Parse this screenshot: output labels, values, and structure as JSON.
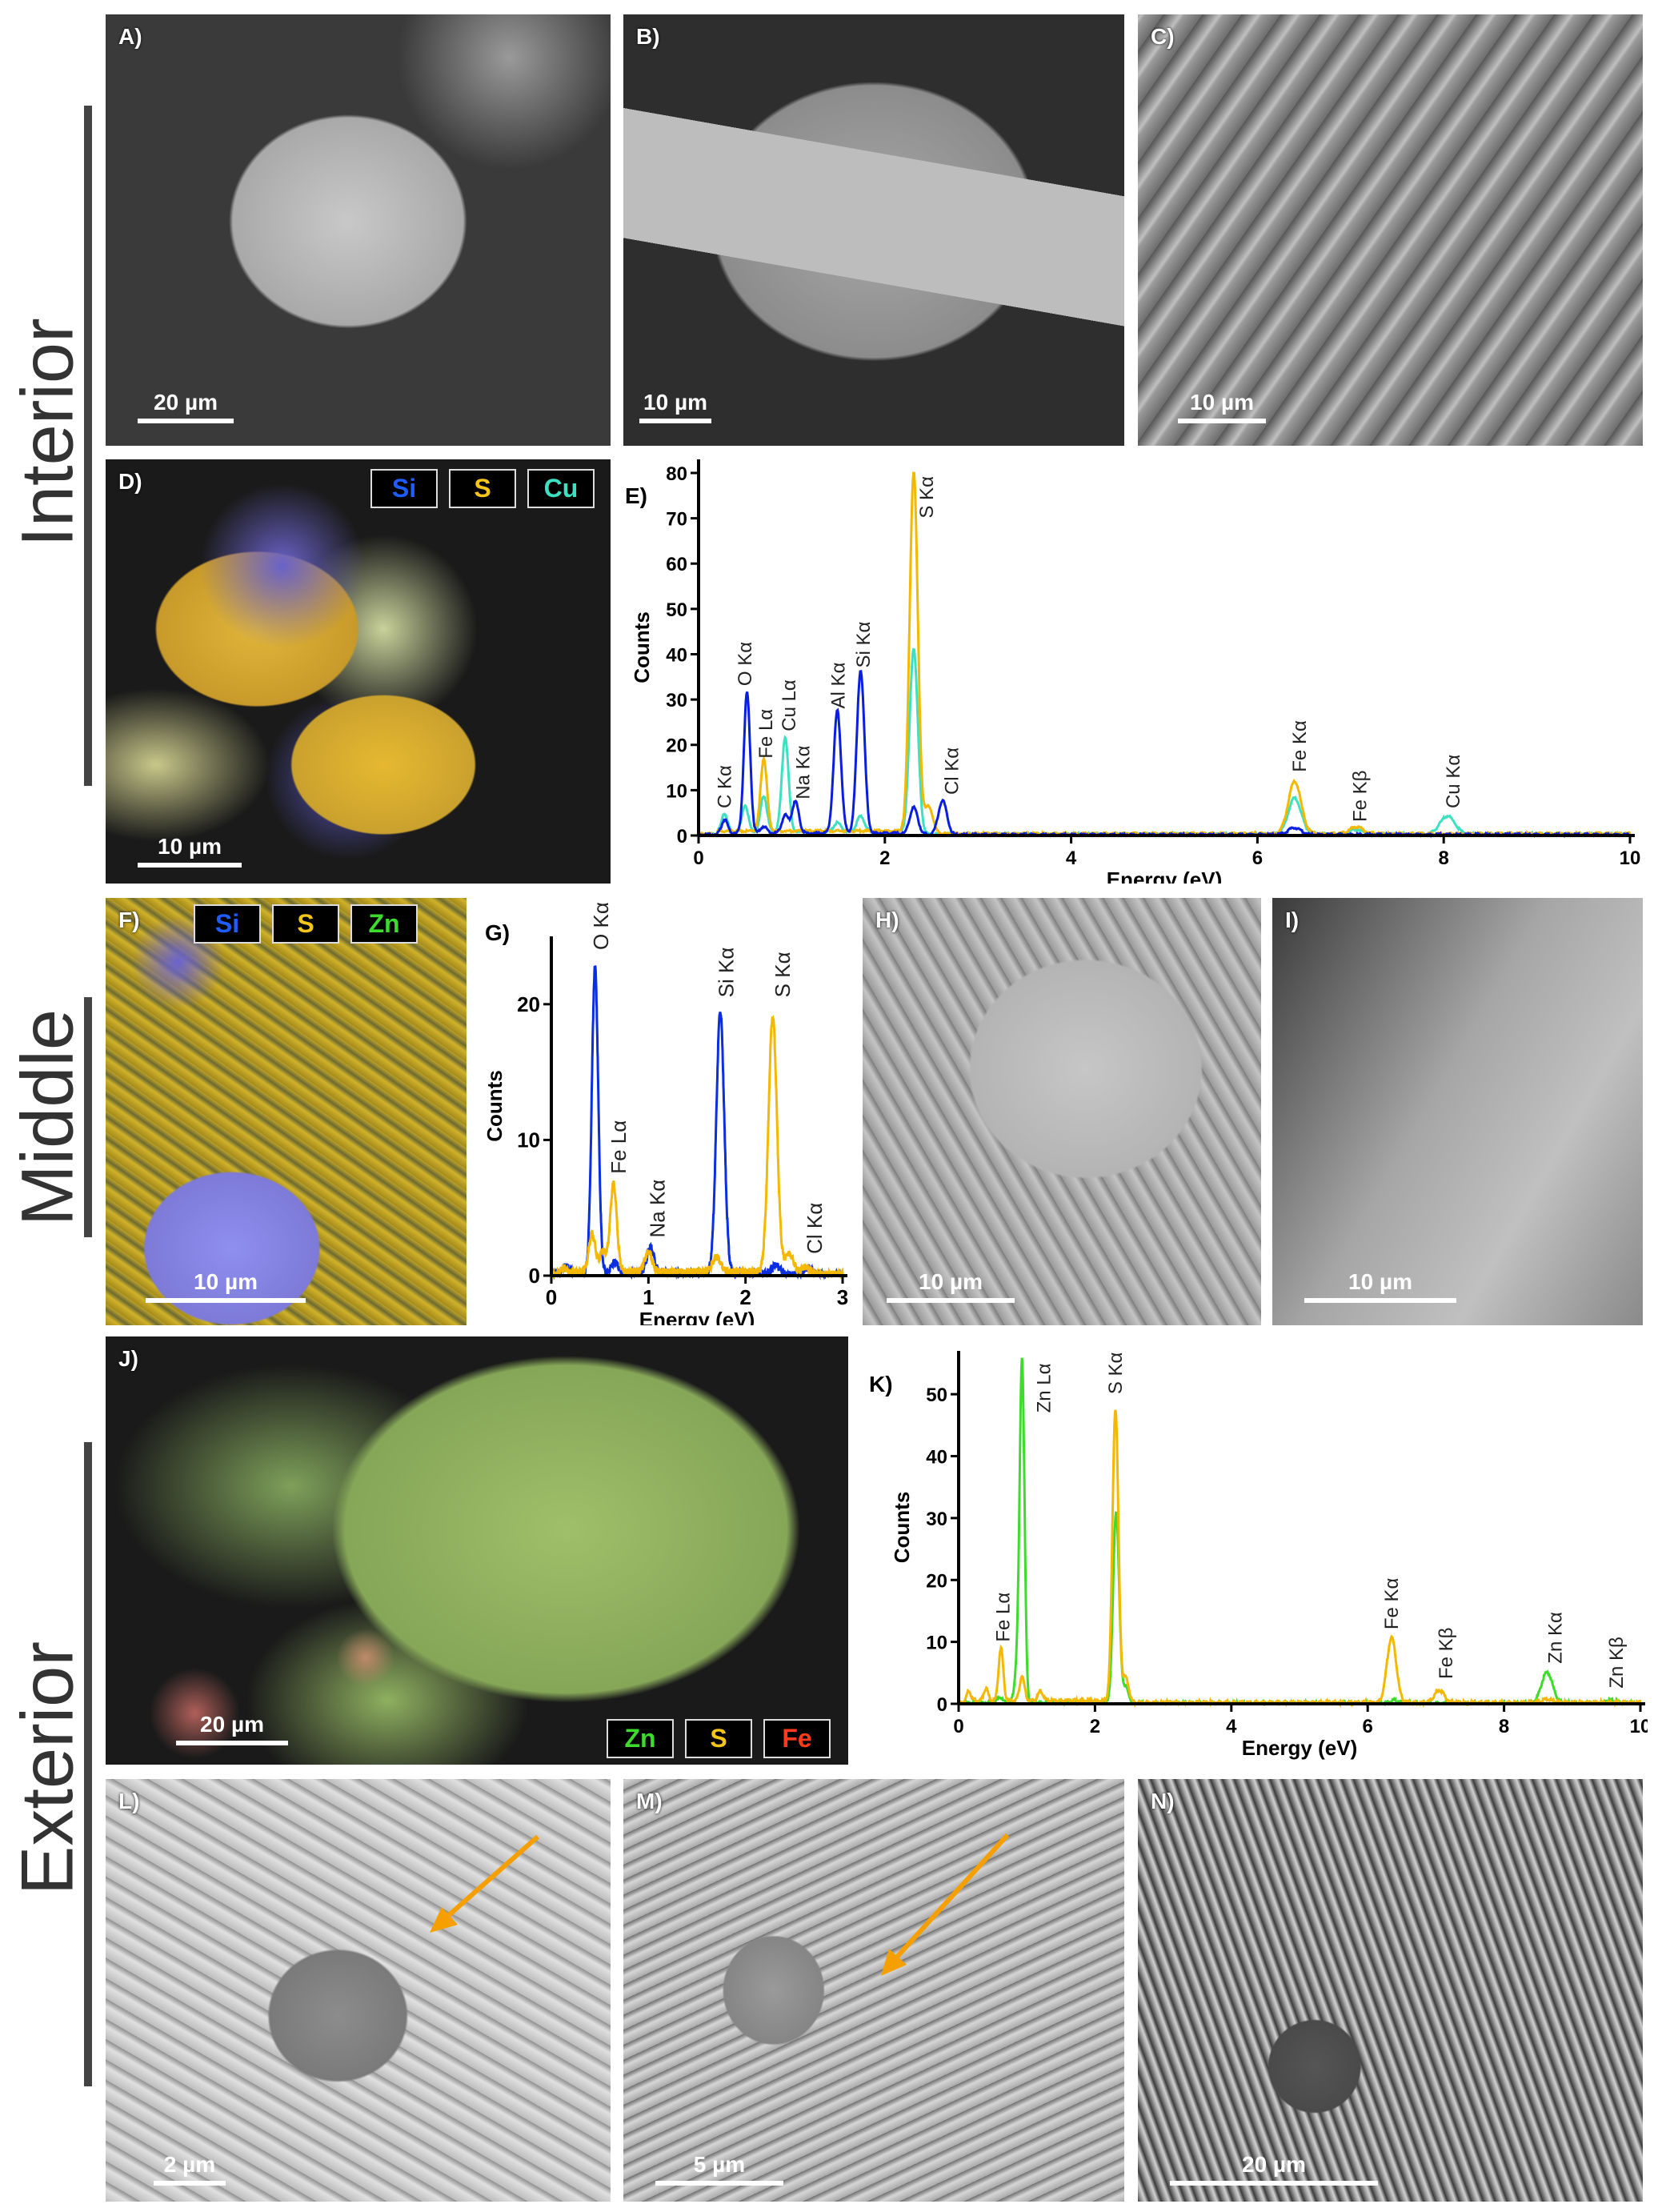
{
  "sections": {
    "interior": "Interior",
    "middle": "Middle",
    "exterior": "Exterior"
  },
  "panels": {
    "A": {
      "label": "A)",
      "scale": "20 µm"
    },
    "B": {
      "label": "B)",
      "scale": "10 µm"
    },
    "C": {
      "label": "C)",
      "scale": "10 µm"
    },
    "D": {
      "label": "D)",
      "scale": "10 µm",
      "tags": [
        {
          "text": "Si",
          "color": "#1e5eff"
        },
        {
          "text": "S",
          "color": "#f5c518"
        },
        {
          "text": "Cu",
          "color": "#3de0c0"
        }
      ]
    },
    "E": {
      "label": "E)"
    },
    "F": {
      "label": "F)",
      "scale": "10 µm",
      "tags": [
        {
          "text": "Si",
          "color": "#1e5eff"
        },
        {
          "text": "S",
          "color": "#f5c518"
        },
        {
          "text": "Zn",
          "color": "#3ddc2c"
        }
      ]
    },
    "G": {
      "label": "G)"
    },
    "H": {
      "label": "H)",
      "scale": "10 µm"
    },
    "I": {
      "label": "I)",
      "scale": "10 µm"
    },
    "J": {
      "label": "J)",
      "scale": "20 µm",
      "tags": [
        {
          "text": "Zn",
          "color": "#3ddc2c"
        },
        {
          "text": "S",
          "color": "#f5c518"
        },
        {
          "text": "Fe",
          "color": "#ff3a1a"
        }
      ]
    },
    "K": {
      "label": "K)"
    },
    "L": {
      "label": "L)",
      "scale": "2 µm"
    },
    "M": {
      "label": "M)",
      "scale": "5 µm"
    },
    "N": {
      "label": "N)",
      "scale": "20 µm"
    }
  },
  "arrow_color": "#f5a000",
  "chart_data": [
    {
      "id": "E",
      "type": "line",
      "xlabel": "Energy (eV)",
      "ylabel": "Counts",
      "xlim": [
        0,
        10
      ],
      "ylim": [
        0,
        83
      ],
      "xticks": [
        0,
        2,
        4,
        6,
        8,
        10
      ],
      "yticks": [
        0,
        10,
        20,
        30,
        40,
        50,
        60,
        70,
        80
      ],
      "grid": false,
      "series": [
        {
          "color": "#3de0c0",
          "baseline": 0.8,
          "peaks": [
            {
              "x": 0.28,
              "y": 4
            },
            {
              "x": 0.5,
              "y": 6
            },
            {
              "x": 0.7,
              "y": 8
            },
            {
              "x": 0.93,
              "y": 21
            },
            {
              "x": 1.49,
              "y": 2
            },
            {
              "x": 1.74,
              "y": 3.5
            },
            {
              "x": 2.31,
              "y": 41
            },
            {
              "x": 6.4,
              "y": 8
            },
            {
              "x": 7.06,
              "y": 1
            },
            {
              "x": 8.04,
              "y": 4
            }
          ]
        },
        {
          "color": "#f5b800",
          "baseline": 1,
          "peaks": [
            {
              "x": 0.7,
              "y": 16
            },
            {
              "x": 2.31,
              "y": 80
            },
            {
              "x": 2.47,
              "y": 6
            },
            {
              "x": 6.4,
              "y": 11.5
            },
            {
              "x": 7.06,
              "y": 1.5
            }
          ]
        },
        {
          "color": "#0a1ee0",
          "baseline": 0.5,
          "peaks": [
            {
              "x": 0.28,
              "y": 3
            },
            {
              "x": 0.52,
              "y": 31
            },
            {
              "x": 0.7,
              "y": 1.5
            },
            {
              "x": 0.93,
              "y": 4
            },
            {
              "x": 1.04,
              "y": 7
            },
            {
              "x": 1.49,
              "y": 27
            },
            {
              "x": 1.74,
              "y": 36
            },
            {
              "x": 2.31,
              "y": 6
            },
            {
              "x": 2.62,
              "y": 7.5
            },
            {
              "x": 6.4,
              "y": 1.5
            }
          ]
        }
      ],
      "annotations": [
        {
          "text": "C Kα",
          "x": 0.28,
          "y": 6
        },
        {
          "text": "O Kα",
          "x": 0.5,
          "y": 33
        },
        {
          "text": "Fe Lα",
          "x": 0.72,
          "y": 17
        },
        {
          "text": "Cu Lα",
          "x": 0.97,
          "y": 23
        },
        {
          "text": "Na Kα",
          "x": 1.12,
          "y": 8
        },
        {
          "text": "Al Kα",
          "x": 1.5,
          "y": 28
        },
        {
          "text": "Si Kα",
          "x": 1.77,
          "y": 37
        },
        {
          "text": "S Kα",
          "x": 2.45,
          "y": 70
        },
        {
          "text": "Cl Kα",
          "x": 2.72,
          "y": 9
        },
        {
          "text": "Fe Kα",
          "x": 6.45,
          "y": 14
        },
        {
          "text": "Fe Kβ",
          "x": 7.1,
          "y": 3
        },
        {
          "text": "Cu Kα",
          "x": 8.1,
          "y": 6
        }
      ]
    },
    {
      "id": "G",
      "type": "line",
      "xlabel": "Energy (eV)",
      "ylabel": "Counts",
      "xlim": [
        0,
        3
      ],
      "ylim": [
        0,
        25
      ],
      "xticks": [
        0,
        1,
        2,
        3
      ],
      "yticks": [
        0,
        10,
        20
      ],
      "grid": false,
      "series": [
        {
          "color": "#0a2ee0",
          "baseline": 0.2,
          "peaks": [
            {
              "x": 0.15,
              "y": 0.7
            },
            {
              "x": 0.45,
              "y": 22.5
            },
            {
              "x": 0.65,
              "y": 0.8
            },
            {
              "x": 1.02,
              "y": 1.9
            },
            {
              "x": 1.74,
              "y": 19.3
            },
            {
              "x": 2.31,
              "y": 0.7
            },
            {
              "x": 2.65,
              "y": 0.5
            }
          ]
        },
        {
          "color": "#f5b800",
          "baseline": 0.3,
          "peaks": [
            {
              "x": 0.13,
              "y": 0.5
            },
            {
              "x": 0.42,
              "y": 2.8
            },
            {
              "x": 0.53,
              "y": 1.5
            },
            {
              "x": 0.64,
              "y": 6.5
            },
            {
              "x": 1.0,
              "y": 1.5
            },
            {
              "x": 1.7,
              "y": 1.1
            },
            {
              "x": 2.28,
              "y": 19
            },
            {
              "x": 2.45,
              "y": 1.5
            },
            {
              "x": 2.62,
              "y": 0.5
            }
          ]
        }
      ],
      "annotations": [
        {
          "text": "O Kα",
          "x": 0.52,
          "y": 24
        },
        {
          "text": "Fe Lα",
          "x": 0.7,
          "y": 7.5
        },
        {
          "text": "Na Kα",
          "x": 1.1,
          "y": 2.8
        },
        {
          "text": "Si Kα",
          "x": 1.81,
          "y": 20.5
        },
        {
          "text": "S Kα",
          "x": 2.39,
          "y": 20.5
        },
        {
          "text": "Cl Kα",
          "x": 2.72,
          "y": 1.6
        }
      ]
    },
    {
      "id": "K",
      "type": "line",
      "xlabel": "Energy (eV)",
      "ylabel": "Counts",
      "xlim": [
        0,
        10
      ],
      "ylim": [
        0,
        57
      ],
      "xticks": [
        0,
        2,
        4,
        6,
        8,
        10
      ],
      "yticks": [
        0,
        10,
        20,
        30,
        40,
        50
      ],
      "grid": false,
      "series": [
        {
          "color": "#3ddc2c",
          "baseline": 0.2,
          "peaks": [
            {
              "x": 0.6,
              "y": 1
            },
            {
              "x": 0.85,
              "y": 4.5
            },
            {
              "x": 0.93,
              "y": 55.5
            },
            {
              "x": 2.31,
              "y": 31
            },
            {
              "x": 2.45,
              "y": 2.5
            },
            {
              "x": 6.38,
              "y": 0.5
            },
            {
              "x": 8.63,
              "y": 5
            },
            {
              "x": 9.57,
              "y": 0.5
            }
          ]
        },
        {
          "color": "#f5b800",
          "baseline": 0.5,
          "peaks": [
            {
              "x": 0.15,
              "y": 2
            },
            {
              "x": 0.4,
              "y": 2
            },
            {
              "x": 0.62,
              "y": 8.5
            },
            {
              "x": 0.93,
              "y": 4
            },
            {
              "x": 1.2,
              "y": 1.5
            },
            {
              "x": 2.3,
              "y": 47.5
            },
            {
              "x": 2.45,
              "y": 4
            },
            {
              "x": 6.35,
              "y": 10.5
            },
            {
              "x": 7.05,
              "y": 2
            },
            {
              "x": 8.63,
              "y": 0.5
            }
          ]
        }
      ],
      "annotations": [
        {
          "text": "Fe Lα",
          "x": 0.65,
          "y": 10
        },
        {
          "text": "Zn Lα",
          "x": 1.25,
          "y": 47
        },
        {
          "text": "S Kα",
          "x": 2.3,
          "y": 50
        },
        {
          "text": "Fe Kα",
          "x": 6.35,
          "y": 12
        },
        {
          "text": "Fe Kβ",
          "x": 7.15,
          "y": 4
        },
        {
          "text": "Zn Kα",
          "x": 8.75,
          "y": 6.5
        },
        {
          "text": "Zn Kβ",
          "x": 9.65,
          "y": 2.5
        }
      ]
    }
  ]
}
